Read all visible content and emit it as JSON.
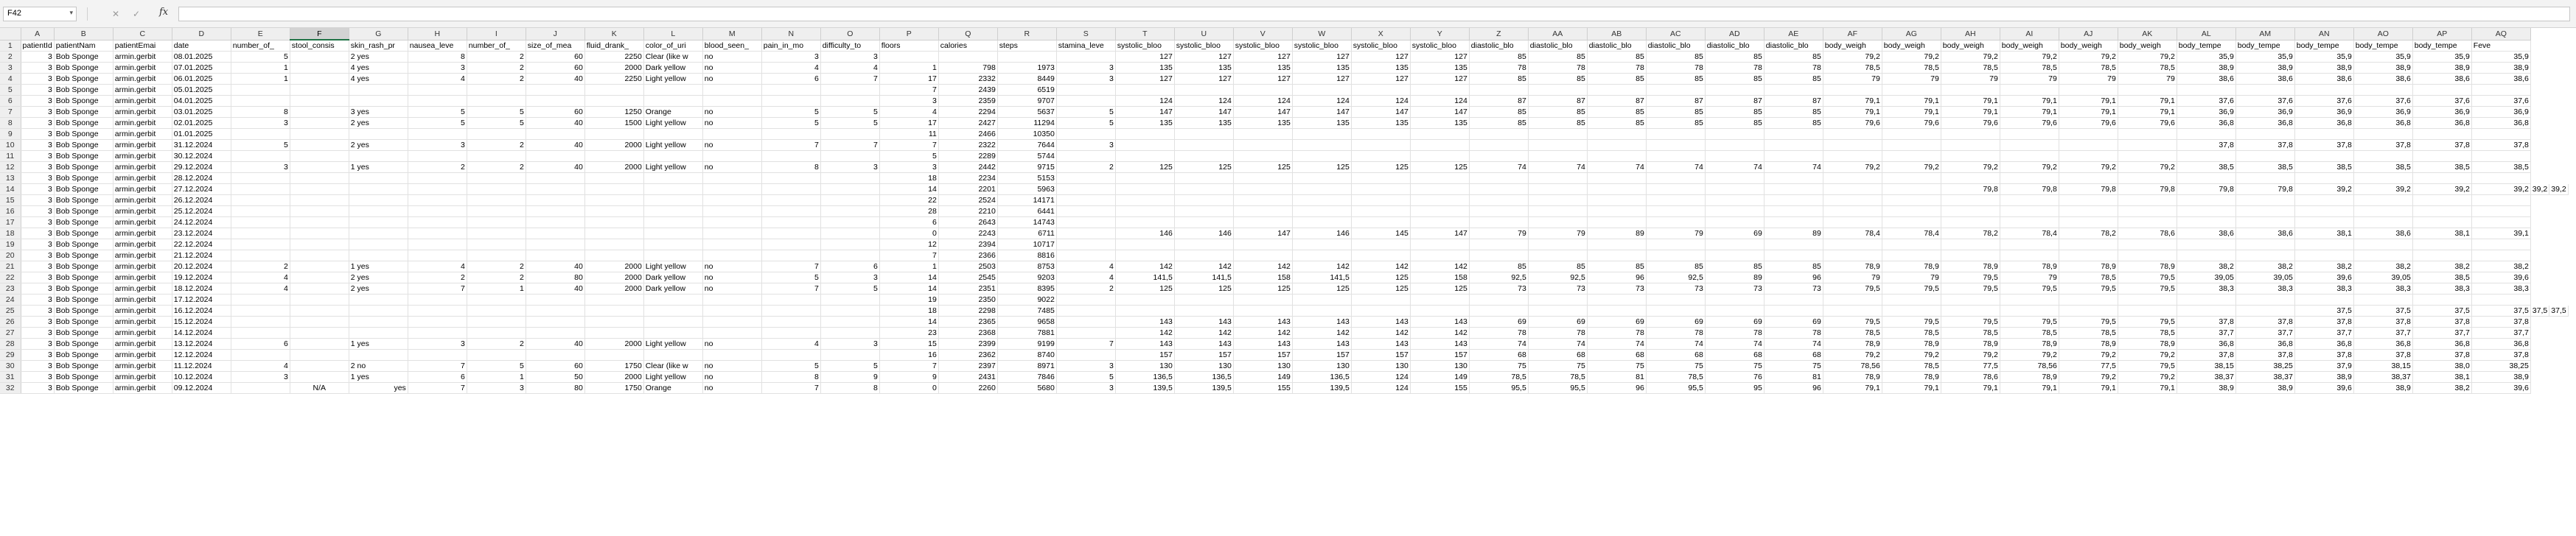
{
  "formula_bar": {
    "name_box": "F42",
    "cancel_icon": "✕",
    "enter_icon": "✓",
    "fx_label": "fx",
    "formula": ""
  },
  "selected_column": "F",
  "columns": [
    "A",
    "B",
    "C",
    "D",
    "E",
    "F",
    "G",
    "H",
    "I",
    "J",
    "K",
    "L",
    "M",
    "N",
    "O",
    "P",
    "Q",
    "R",
    "S",
    "T",
    "U",
    "V",
    "W",
    "X",
    "Y",
    "Z",
    "AA",
    "AB",
    "AC",
    "AD",
    "AE",
    "AF",
    "AG",
    "AH",
    "AI",
    "AJ",
    "AK",
    "AL",
    "AM",
    "AN",
    "AO",
    "AP",
    "AQ"
  ],
  "headers": [
    "patientId",
    "patientNam",
    "patientEmai",
    "date",
    "number_of_",
    "stool_consis",
    "skin_rash_pr",
    "nausea_leve",
    "number_of_",
    "size_of_mea",
    "fluid_drank_",
    "color_of_uri",
    "blood_seen_",
    "pain_in_mo",
    "difficulty_to",
    "floors",
    "calories",
    "steps",
    "stamina_leve",
    "systolic_bloo",
    "systolic_bloo",
    "systolic_bloo",
    "systolic_bloo",
    "systolic_bloo",
    "systolic_bloo",
    "diastolic_blo",
    "diastolic_blo",
    "diastolic_blo",
    "diastolic_blo",
    "diastolic_blo",
    "diastolic_blo",
    "body_weigh",
    "body_weigh",
    "body_weigh",
    "body_weigh",
    "body_weigh",
    "body_weigh",
    "body_tempe",
    "body_tempe",
    "body_tempe",
    "body_tempe",
    "body_tempe",
    "Feve"
  ],
  "rows": [
    [
      "3",
      "Bob Sponge",
      "armin.gerbit",
      "08.01.2025",
      "5",
      "",
      "2 yes",
      "8",
      "2",
      "60",
      "2250",
      "Clear (like w",
      "no",
      "3",
      "3",
      "",
      "",
      "",
      "",
      "127",
      "127",
      "127",
      "127",
      "127",
      "127",
      "85",
      "85",
      "85",
      "85",
      "85",
      "85",
      "79,2",
      "79,2",
      "79,2",
      "79,2",
      "79,2",
      "79,2",
      "35,9",
      "35,9",
      "35,9",
      "35,9",
      "35,9",
      "35,9"
    ],
    [
      "3",
      "Bob Sponge",
      "armin.gerbit",
      "07.01.2025",
      "1",
      "",
      "4 yes",
      "3",
      "2",
      "60",
      "2000",
      "Dark yellow",
      "no",
      "4",
      "4",
      "1",
      "798",
      "1973",
      "3",
      "135",
      "135",
      "135",
      "135",
      "135",
      "135",
      "78",
      "78",
      "78",
      "78",
      "78",
      "78",
      "78,5",
      "78,5",
      "78,5",
      "78,5",
      "78,5",
      "78,5",
      "38,9",
      "38,9",
      "38,9",
      "38,9",
      "38,9",
      "38,9"
    ],
    [
      "3",
      "Bob Sponge",
      "armin.gerbit",
      "06.01.2025",
      "1",
      "",
      "4 yes",
      "4",
      "2",
      "40",
      "2250",
      "Light yellow",
      "no",
      "6",
      "7",
      "17",
      "2332",
      "8449",
      "3",
      "127",
      "127",
      "127",
      "127",
      "127",
      "127",
      "85",
      "85",
      "85",
      "85",
      "85",
      "85",
      "79",
      "79",
      "79",
      "79",
      "79",
      "79",
      "38,6",
      "38,6",
      "38,6",
      "38,6",
      "38,6",
      "38,6"
    ],
    [
      "3",
      "Bob Sponge",
      "armin.gerbit",
      "05.01.2025",
      "",
      "",
      "",
      "",
      "",
      "",
      "",
      "",
      "",
      "",
      "",
      "7",
      "2439",
      "6519",
      "",
      "",
      "",
      "",
      "",
      "",
      "",
      "",
      "",
      "",
      "",
      "",
      "",
      "",
      "",
      "",
      "",
      "",
      "",
      "",
      "",
      "",
      "",
      "",
      ""
    ],
    [
      "3",
      "Bob Sponge",
      "armin.gerbit",
      "04.01.2025",
      "",
      "",
      "",
      "",
      "",
      "",
      "",
      "",
      "",
      "",
      "",
      "3",
      "2359",
      "9707",
      "",
      "124",
      "124",
      "124",
      "124",
      "124",
      "124",
      "87",
      "87",
      "87",
      "87",
      "87",
      "87",
      "79,1",
      "79,1",
      "79,1",
      "79,1",
      "79,1",
      "79,1",
      "37,6",
      "37,6",
      "37,6",
      "37,6",
      "37,6",
      "37,6"
    ],
    [
      "3",
      "Bob Sponge",
      "armin.gerbit",
      "03.01.2025",
      "8",
      "",
      "3 yes",
      "5",
      "5",
      "60",
      "1250",
      "Orange",
      "no",
      "5",
      "5",
      "4",
      "2294",
      "5637",
      "5",
      "147",
      "147",
      "147",
      "147",
      "147",
      "147",
      "85",
      "85",
      "85",
      "85",
      "85",
      "85",
      "79,1",
      "79,1",
      "79,1",
      "79,1",
      "79,1",
      "79,1",
      "36,9",
      "36,9",
      "36,9",
      "36,9",
      "36,9",
      "36,9"
    ],
    [
      "3",
      "Bob Sponge",
      "armin.gerbit",
      "02.01.2025",
      "3",
      "",
      "2 yes",
      "5",
      "5",
      "40",
      "1500",
      "Light yellow",
      "no",
      "5",
      "5",
      "17",
      "2427",
      "11294",
      "5",
      "135",
      "135",
      "135",
      "135",
      "135",
      "135",
      "85",
      "85",
      "85",
      "85",
      "85",
      "85",
      "79,6",
      "79,6",
      "79,6",
      "79,6",
      "79,6",
      "79,6",
      "36,8",
      "36,8",
      "36,8",
      "36,8",
      "36,8",
      "36,8"
    ],
    [
      "3",
      "Bob Sponge",
      "armin.gerbit",
      "01.01.2025",
      "",
      "",
      "",
      "",
      "",
      "",
      "",
      "",
      "",
      "",
      "",
      "11",
      "2466",
      "10350",
      "",
      "",
      "",
      "",
      "",
      "",
      "",
      "",
      "",
      "",
      "",
      "",
      "",
      "",
      "",
      "",
      "",
      "",
      "",
      "",
      "",
      "",
      "",
      "",
      ""
    ],
    [
      "3",
      "Bob Sponge",
      "armin.gerbit",
      "31.12.2024",
      "5",
      "",
      "2 yes",
      "3",
      "2",
      "40",
      "2000",
      "Light yellow",
      "no",
      "7",
      "7",
      "7",
      "2322",
      "7644",
      "3",
      "",
      "",
      "",
      "",
      "",
      "",
      "",
      "",
      "",
      "",
      "",
      "",
      "",
      "",
      "",
      "",
      "",
      "",
      "37,8",
      "37,8",
      "37,8",
      "37,8",
      "37,8",
      "37,8"
    ],
    [
      "3",
      "Bob Sponge",
      "armin.gerbit",
      "30.12.2024",
      "",
      "",
      "",
      "",
      "",
      "",
      "",
      "",
      "",
      "",
      "",
      "5",
      "2289",
      "5744",
      "",
      "",
      "",
      "",
      "",
      "",
      "",
      "",
      "",
      "",
      "",
      "",
      "",
      "",
      "",
      "",
      "",
      "",
      "",
      "",
      "",
      "",
      "",
      "",
      ""
    ],
    [
      "3",
      "Bob Sponge",
      "armin.gerbit",
      "29.12.2024",
      "3",
      "",
      "1 yes",
      "2",
      "2",
      "40",
      "2000",
      "Light yellow",
      "no",
      "8",
      "3",
      "3",
      "2442",
      "9715",
      "2",
      "125",
      "125",
      "125",
      "125",
      "125",
      "125",
      "74",
      "74",
      "74",
      "74",
      "74",
      "74",
      "79,2",
      "79,2",
      "79,2",
      "79,2",
      "79,2",
      "79,2",
      "38,5",
      "38,5",
      "38,5",
      "38,5",
      "38,5",
      "38,5"
    ],
    [
      "3",
      "Bob Sponge",
      "armin.gerbit",
      "28.12.2024",
      "",
      "",
      "",
      "",
      "",
      "",
      "",
      "",
      "",
      "",
      "",
      "18",
      "2234",
      "5153",
      "",
      "",
      "",
      "",
      "",
      "",
      "",
      "",
      "",
      "",
      "",
      "",
      "",
      "",
      "",
      "",
      "",
      "",
      "",
      "",
      "",
      "",
      "",
      "",
      ""
    ],
    [
      "3",
      "Bob Sponge",
      "armin.gerbit",
      "27.12.2024",
      "",
      "",
      "",
      "",
      "",
      "",
      "",
      "",
      "",
      "",
      "",
      "14",
      "2201",
      "5963",
      "",
      "",
      "",
      "",
      "",
      "",
      "",
      "",
      "",
      "",
      "",
      "",
      "",
      "",
      "",
      "79,8",
      "79,8",
      "79,8",
      "79,8",
      "79,8",
      "79,8",
      "39,2",
      "39,2",
      "39,2",
      "39,2",
      "39,2",
      "39,2"
    ],
    [
      "3",
      "Bob Sponge",
      "armin.gerbit",
      "26.12.2024",
      "",
      "",
      "",
      "",
      "",
      "",
      "",
      "",
      "",
      "",
      "",
      "22",
      "2524",
      "14171",
      "",
      "",
      "",
      "",
      "",
      "",
      "",
      "",
      "",
      "",
      "",
      "",
      "",
      "",
      "",
      "",
      "",
      "",
      "",
      "",
      "",
      "",
      "",
      "",
      ""
    ],
    [
      "3",
      "Bob Sponge",
      "armin.gerbit",
      "25.12.2024",
      "",
      "",
      "",
      "",
      "",
      "",
      "",
      "",
      "",
      "",
      "",
      "28",
      "2210",
      "6441",
      "",
      "",
      "",
      "",
      "",
      "",
      "",
      "",
      "",
      "",
      "",
      "",
      "",
      "",
      "",
      "",
      "",
      "",
      "",
      "",
      "",
      "",
      "",
      "",
      ""
    ],
    [
      "3",
      "Bob Sponge",
      "armin.gerbit",
      "24.12.2024",
      "",
      "",
      "",
      "",
      "",
      "",
      "",
      "",
      "",
      "",
      "",
      "6",
      "2643",
      "14743",
      "",
      "",
      "",
      "",
      "",
      "",
      "",
      "",
      "",
      "",
      "",
      "",
      "",
      "",
      "",
      "",
      "",
      "",
      "",
      "",
      "",
      "",
      "",
      "",
      ""
    ],
    [
      "3",
      "Bob Sponge",
      "armin.gerbit",
      "23.12.2024",
      "",
      "",
      "",
      "",
      "",
      "",
      "",
      "",
      "",
      "",
      "",
      "0",
      "2243",
      "6711",
      "",
      "146",
      "146",
      "147",
      "146",
      "145",
      "147",
      "79",
      "79",
      "89",
      "79",
      "69",
      "89",
      "78,4",
      "78,4",
      "78,2",
      "78,4",
      "78,2",
      "78,6",
      "38,6",
      "38,6",
      "38,1",
      "38,6",
      "38,1",
      "39,1"
    ],
    [
      "3",
      "Bob Sponge",
      "armin.gerbit",
      "22.12.2024",
      "",
      "",
      "",
      "",
      "",
      "",
      "",
      "",
      "",
      "",
      "",
      "12",
      "2394",
      "10717",
      "",
      "",
      "",
      "",
      "",
      "",
      "",
      "",
      "",
      "",
      "",
      "",
      "",
      "",
      "",
      "",
      "",
      "",
      "",
      "",
      "",
      "",
      "",
      "",
      ""
    ],
    [
      "3",
      "Bob Sponge",
      "armin.gerbit",
      "21.12.2024",
      "",
      "",
      "",
      "",
      "",
      "",
      "",
      "",
      "",
      "",
      "",
      "7",
      "2366",
      "8816",
      "",
      "",
      "",
      "",
      "",
      "",
      "",
      "",
      "",
      "",
      "",
      "",
      "",
      "",
      "",
      "",
      "",
      "",
      "",
      "",
      "",
      "",
      "",
      "",
      ""
    ],
    [
      "3",
      "Bob Sponge",
      "armin.gerbit",
      "20.12.2024",
      "2",
      "",
      "1 yes",
      "4",
      "2",
      "40",
      "2000",
      "Light yellow",
      "no",
      "7",
      "6",
      "1",
      "2503",
      "8753",
      "4",
      "142",
      "142",
      "142",
      "142",
      "142",
      "142",
      "85",
      "85",
      "85",
      "85",
      "85",
      "85",
      "78,9",
      "78,9",
      "78,9",
      "78,9",
      "78,9",
      "78,9",
      "38,2",
      "38,2",
      "38,2",
      "38,2",
      "38,2",
      "38,2"
    ],
    [
      "3",
      "Bob Sponge",
      "armin.gerbit",
      "19.12.2024",
      "4",
      "",
      "2 yes",
      "2",
      "2",
      "80",
      "2000",
      "Dark yellow",
      "no",
      "5",
      "3",
      "14",
      "2545",
      "9203",
      "4",
      "141,5",
      "141,5",
      "158",
      "141,5",
      "125",
      "158",
      "92,5",
      "92,5",
      "96",
      "92,5",
      "89",
      "96",
      "79",
      "79",
      "79,5",
      "79",
      "78,5",
      "79,5",
      "39,05",
      "39,05",
      "39,6",
      "39,05",
      "38,5",
      "39,6"
    ],
    [
      "3",
      "Bob Sponge",
      "armin.gerbit",
      "18.12.2024",
      "4",
      "",
      "2 yes",
      "7",
      "1",
      "40",
      "2000",
      "Dark yellow",
      "no",
      "7",
      "5",
      "14",
      "2351",
      "8395",
      "2",
      "125",
      "125",
      "125",
      "125",
      "125",
      "125",
      "73",
      "73",
      "73",
      "73",
      "73",
      "73",
      "79,5",
      "79,5",
      "79,5",
      "79,5",
      "79,5",
      "79,5",
      "38,3",
      "38,3",
      "38,3",
      "38,3",
      "38,3",
      "38,3"
    ],
    [
      "3",
      "Bob Sponge",
      "armin.gerbit",
      "17.12.2024",
      "",
      "",
      "",
      "",
      "",
      "",
      "",
      "",
      "",
      "",
      "",
      "19",
      "2350",
      "9022",
      "",
      "",
      "",
      "",
      "",
      "",
      "",
      "",
      "",
      "",
      "",
      "",
      "",
      "",
      "",
      "",
      "",
      "",
      "",
      "",
      "",
      "",
      "",
      "",
      ""
    ],
    [
      "3",
      "Bob Sponge",
      "armin.gerbit",
      "16.12.2024",
      "",
      "",
      "",
      "",
      "",
      "",
      "",
      "",
      "",
      "",
      "",
      "18",
      "2298",
      "7485",
      "",
      "",
      "",
      "",
      "",
      "",
      "",
      "",
      "",
      "",
      "",
      "",
      "",
      "",
      "",
      "",
      "",
      "",
      "",
      "",
      "",
      "37,5",
      "37,5",
      "37,5",
      "37,5",
      "37,5",
      "37,5"
    ],
    [
      "3",
      "Bob Sponge",
      "armin.gerbit",
      "15.12.2024",
      "",
      "",
      "",
      "",
      "",
      "",
      "",
      "",
      "",
      "",
      "",
      "14",
      "2365",
      "9658",
      "",
      "143",
      "143",
      "143",
      "143",
      "143",
      "143",
      "69",
      "69",
      "69",
      "69",
      "69",
      "69",
      "79,5",
      "79,5",
      "79,5",
      "79,5",
      "79,5",
      "79,5",
      "37,8",
      "37,8",
      "37,8",
      "37,8",
      "37,8",
      "37,8"
    ],
    [
      "3",
      "Bob Sponge",
      "armin.gerbit",
      "14.12.2024",
      "",
      "",
      "",
      "",
      "",
      "",
      "",
      "",
      "",
      "",
      "",
      "23",
      "2368",
      "7881",
      "",
      "142",
      "142",
      "142",
      "142",
      "142",
      "142",
      "78",
      "78",
      "78",
      "78",
      "78",
      "78",
      "78,5",
      "78,5",
      "78,5",
      "78,5",
      "78,5",
      "78,5",
      "37,7",
      "37,7",
      "37,7",
      "37,7",
      "37,7",
      "37,7"
    ],
    [
      "3",
      "Bob Sponge",
      "armin.gerbit",
      "13.12.2024",
      "6",
      "",
      "1 yes",
      "3",
      "2",
      "40",
      "2000",
      "Light yellow",
      "no",
      "4",
      "3",
      "15",
      "2399",
      "9199",
      "7",
      "143",
      "143",
      "143",
      "143",
      "143",
      "143",
      "74",
      "74",
      "74",
      "74",
      "74",
      "74",
      "78,9",
      "78,9",
      "78,9",
      "78,9",
      "78,9",
      "78,9",
      "36,8",
      "36,8",
      "36,8",
      "36,8",
      "36,8",
      "36,8"
    ],
    [
      "3",
      "Bob Sponge",
      "armin.gerbit",
      "12.12.2024",
      "",
      "",
      "",
      "",
      "",
      "",
      "",
      "",
      "",
      "",
      "",
      "16",
      "2362",
      "8740",
      "",
      "157",
      "157",
      "157",
      "157",
      "157",
      "157",
      "68",
      "68",
      "68",
      "68",
      "68",
      "68",
      "79,2",
      "79,2",
      "79,2",
      "79,2",
      "79,2",
      "79,2",
      "37,8",
      "37,8",
      "37,8",
      "37,8",
      "37,8",
      "37,8"
    ],
    [
      "3",
      "Bob Sponge",
      "armin.gerbit",
      "11.12.2024",
      "4",
      "",
      "2 no",
      "7",
      "5",
      "60",
      "1750",
      "Clear (like w",
      "no",
      "5",
      "5",
      "7",
      "2397",
      "8971",
      "3",
      "130",
      "130",
      "130",
      "130",
      "130",
      "130",
      "75",
      "75",
      "75",
      "75",
      "75",
      "75",
      "78,56",
      "78,5",
      "77,5",
      "78,56",
      "77,5",
      "79,5",
      "38,15",
      "38,25",
      "37,9",
      "38,15",
      "38,0",
      "38,25"
    ],
    [
      "3",
      "Bob Sponge",
      "armin.gerbit",
      "10.12.2024",
      "3",
      "",
      "1 yes",
      "6",
      "1",
      "50",
      "2000",
      "Light yellow",
      "no",
      "8",
      "9",
      "9",
      "2431",
      "7846",
      "5",
      "136,5",
      "136,5",
      "149",
      "136,5",
      "124",
      "149",
      "78,5",
      "78,5",
      "81",
      "78,5",
      "76",
      "81",
      "78,9",
      "78,9",
      "78,6",
      "78,9",
      "79,2",
      "79,2",
      "38,37",
      "38,37",
      "38,9",
      "38,37",
      "38,1",
      "38,9"
    ],
    [
      "3",
      "Bob Sponge",
      "armin.gerbit",
      "09.12.2024",
      "",
      "N/A",
      "yes",
      "7",
      "3",
      "80",
      "1750",
      "Orange",
      "no",
      "7",
      "8",
      "0",
      "2260",
      "5680",
      "3",
      "139,5",
      "139,5",
      "155",
      "139,5",
      "124",
      "155",
      "95,5",
      "95,5",
      "96",
      "95,5",
      "95",
      "96",
      "79,1",
      "79,1",
      "79,1",
      "79,1",
      "79,1",
      "79,1",
      "38,9",
      "38,9",
      "39,6",
      "38,9",
      "38,2",
      "39,6"
    ]
  ]
}
